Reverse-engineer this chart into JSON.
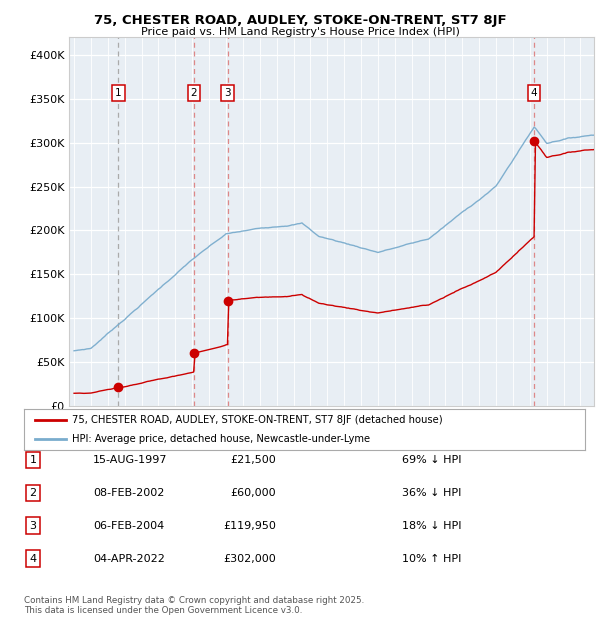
{
  "title": "75, CHESTER ROAD, AUDLEY, STOKE-ON-TRENT, ST7 8JF",
  "subtitle": "Price paid vs. HM Land Registry's House Price Index (HPI)",
  "transactions": [
    {
      "num": 1,
      "date_str": "15-AUG-1997",
      "year": 1997.62,
      "price": 21500,
      "pct": "69% ↓ HPI"
    },
    {
      "num": 2,
      "date_str": "08-FEB-2002",
      "year": 2002.1,
      "price": 60000,
      "pct": "36% ↓ HPI"
    },
    {
      "num": 3,
      "date_str": "06-FEB-2004",
      "year": 2004.1,
      "price": 119950,
      "pct": "18% ↓ HPI"
    },
    {
      "num": 4,
      "date_str": "04-APR-2022",
      "year": 2022.25,
      "price": 302000,
      "pct": "10% ↑ HPI"
    }
  ],
  "legend_line1": "75, CHESTER ROAD, AUDLEY, STOKE-ON-TRENT, ST7 8JF (detached house)",
  "legend_line2": "HPI: Average price, detached house, Newcastle-under-Lyme",
  "footnote": "Contains HM Land Registry data © Crown copyright and database right 2025.\nThis data is licensed under the Open Government Licence v3.0.",
  "table_rows": [
    [
      "1",
      "15-AUG-1997",
      "£21,500",
      "69% ↓ HPI"
    ],
    [
      "2",
      "08-FEB-2002",
      "£60,000",
      "36% ↓ HPI"
    ],
    [
      "3",
      "06-FEB-2004",
      "£119,950",
      "18% ↓ HPI"
    ],
    [
      "4",
      "04-APR-2022",
      "£302,000",
      "10% ↑ HPI"
    ]
  ],
  "red_color": "#cc0000",
  "blue_color": "#7aaccd",
  "dashed_color_gray": "#aaaaaa",
  "dashed_color_red": "#dd8888",
  "background_color": "#e8eef4",
  "ylim": [
    0,
    420000
  ],
  "xlim_start": 1994.7,
  "xlim_end": 2025.8
}
